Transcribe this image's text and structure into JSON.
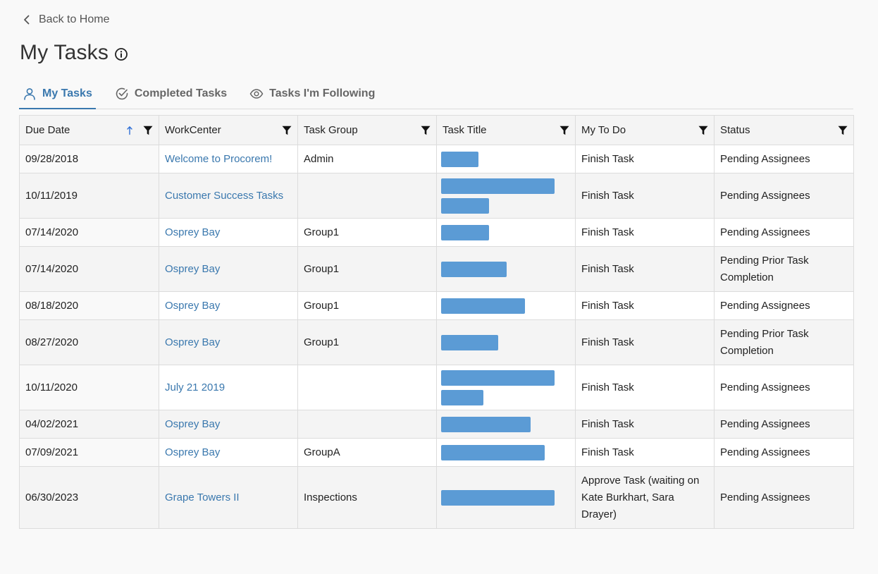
{
  "nav": {
    "back_label": "Back to Home"
  },
  "page": {
    "title": "My Tasks"
  },
  "tabs": [
    {
      "label": "My Tasks",
      "icon": "user-icon",
      "active": true
    },
    {
      "label": "Completed Tasks",
      "icon": "check-circle-icon",
      "active": false
    },
    {
      "label": "Tasks I'm Following",
      "icon": "eye-icon",
      "active": false
    }
  ],
  "table": {
    "columns": [
      "Due Date",
      "WorkCenter",
      "Task Group",
      "Task Title",
      "My To Do",
      "Status"
    ],
    "sort": {
      "column": "Due Date",
      "direction": "ascending"
    },
    "rows": [
      {
        "due": "09/28/2018",
        "workcenter": "Welcome to Procorem!",
        "group": "Admin",
        "todo": "Finish Task",
        "status": "Pending Assignees",
        "title_redacted": [
          0.33
        ]
      },
      {
        "due": "10/11/2019",
        "workcenter": "Customer Success Tasks",
        "group": "",
        "todo": "Finish Task",
        "status": "Pending Assignees",
        "title_redacted": [
          1.0,
          0.42
        ]
      },
      {
        "due": "07/14/2020",
        "workcenter": "Osprey Bay",
        "group": "Group1",
        "todo": "Finish Task",
        "status": "Pending Assignees",
        "title_redacted": [
          0.42
        ]
      },
      {
        "due": "07/14/2020",
        "workcenter": "Osprey Bay",
        "group": "Group1",
        "todo": "Finish Task",
        "status": "Pending Prior Task Completion",
        "title_redacted": [
          0.58
        ]
      },
      {
        "due": "08/18/2020",
        "workcenter": "Osprey Bay",
        "group": "Group1",
        "todo": "Finish Task",
        "status": "Pending Assignees",
        "title_redacted": [
          0.74
        ]
      },
      {
        "due": "08/27/2020",
        "workcenter": "Osprey Bay",
        "group": "Group1",
        "todo": "Finish Task",
        "status": "Pending Prior Task Completion",
        "title_redacted": [
          0.5
        ]
      },
      {
        "due": "10/11/2020",
        "workcenter": "July 21 2019",
        "group": "",
        "todo": "Finish Task",
        "status": "Pending Assignees",
        "title_redacted": [
          1.0,
          0.37
        ]
      },
      {
        "due": "04/02/2021",
        "workcenter": "Osprey Bay",
        "group": "",
        "todo": "Finish Task",
        "status": "Pending Assignees",
        "title_redacted": [
          0.79
        ]
      },
      {
        "due": "07/09/2021",
        "workcenter": "Osprey Bay",
        "group": "GroupA",
        "todo": "Finish Task",
        "status": "Pending Assignees",
        "title_redacted": [
          0.91
        ]
      },
      {
        "due": "06/30/2023",
        "workcenter": "Grape Towers II",
        "group": "Inspections",
        "todo": "Approve Task (waiting on Kate Burkhart, Sara Drayer)",
        "status": "Pending Assignees",
        "title_redacted": [
          1.0
        ]
      }
    ]
  },
  "colors": {
    "accent": "#3a78ae",
    "redaction": "#5b9bd5",
    "sort_arrow": "#2f6fd6"
  }
}
